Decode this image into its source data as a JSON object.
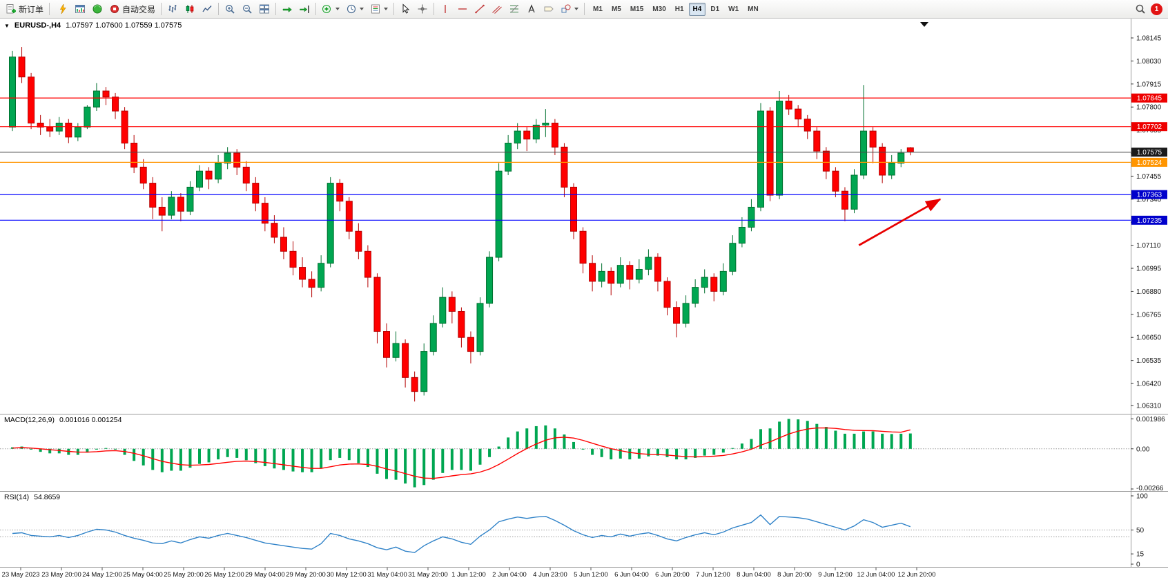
{
  "toolbar": {
    "new_order_label": "新订单",
    "autotrading_label": "自动交易",
    "timeframes": [
      "M1",
      "M5",
      "M15",
      "M30",
      "H1",
      "H4",
      "D1",
      "W1",
      "MN"
    ],
    "active_timeframe": "H4",
    "notification_count": "1"
  },
  "chart_data": {
    "type": "candlestick",
    "title": "EURUSD-,H4",
    "menu_icon": "▼",
    "quote_line": "1.07597 1.07600 1.07559 1.07575",
    "price_axis": {
      "max": 1.08145,
      "min": 1.0631,
      "tick_labels": [
        "1.08145",
        "1.08030",
        "1.07915",
        "1.07800",
        "1.07685",
        "1.07570",
        "1.07455",
        "1.07340",
        "1.07225",
        "1.07110",
        "1.06995",
        "1.06880",
        "1.06765",
        "1.06650",
        "1.06535",
        "1.06420",
        "1.06310"
      ]
    },
    "time_labels": [
      "23 May 2023",
      "23 May 20:00",
      "24 May 12:00",
      "25 May 04:00",
      "25 May 20:00",
      "26 May 12:00",
      "29 May 04:00",
      "29 May 20:00",
      "30 May 12:00",
      "31 May 04:00",
      "31 May 20:00",
      "1 Jun 12:00",
      "2 Jun 04:00",
      "4 Jun 23:00",
      "5 Jun 12:00",
      "6 Jun 04:00",
      "6 Jun 20:00",
      "7 Jun 12:00",
      "8 Jun 04:00",
      "8 Jun 20:00",
      "9 Jun 12:00",
      "12 Jun 04:00",
      "12 Jun 20:00"
    ],
    "colors": {
      "up": "#00a651",
      "up_border": "#00702f",
      "down": "#ff0000",
      "down_border": "#b40000",
      "macd_hist": "#00a651",
      "macd_signal": "#ff0000",
      "rsi_line": "#2f82c8",
      "grid": "#9a9a9a"
    },
    "hlines": [
      {
        "price": 1.07845,
        "color": "#ff0000",
        "box": "1.07845",
        "box_color": "#ee0000"
      },
      {
        "price": 1.07702,
        "color": "#ff0000",
        "box": "1.07702",
        "box_color": "#ee0000"
      },
      {
        "price": 1.07575,
        "color": "#4a4a4a",
        "box": "1.07575",
        "box_color": "#1a1a1a"
      },
      {
        "price": 1.07524,
        "color": "#ff9500",
        "box": "1.07524",
        "box_color": "#ff9500"
      },
      {
        "price": 1.07363,
        "color": "#0000ff",
        "box": "1.07363",
        "box_color": "#0000cc"
      },
      {
        "price": 1.07235,
        "color": "#0000ff",
        "box": "1.07235",
        "box_color": "#0000cc"
      }
    ],
    "arrow": {
      "from_bar": 90.5,
      "from_price": 1.0711,
      "to_bar": 99.2,
      "to_price": 1.0734,
      "color": "#e80000"
    },
    "candles": [
      [
        1.077,
        1.0808,
        1.0768,
        1.0805
      ],
      [
        1.0805,
        1.081,
        1.0792,
        1.0795
      ],
      [
        1.0795,
        1.0797,
        1.0769,
        1.0772
      ],
      [
        1.0772,
        1.0776,
        1.0766,
        1.077
      ],
      [
        1.077,
        1.0774,
        1.0765,
        1.0768
      ],
      [
        1.0768,
        1.0775,
        1.0766,
        1.0772
      ],
      [
        1.0772,
        1.0774,
        1.0762,
        1.0765
      ],
      [
        1.0765,
        1.0772,
        1.0763,
        1.077
      ],
      [
        1.077,
        1.0781,
        1.0769,
        1.078
      ],
      [
        1.078,
        1.0792,
        1.0778,
        1.0788
      ],
      [
        1.0788,
        1.079,
        1.0781,
        1.0785
      ],
      [
        1.0785,
        1.0787,
        1.0774,
        1.0778
      ],
      [
        1.0778,
        1.078,
        1.0759,
        1.0762
      ],
      [
        1.0762,
        1.0766,
        1.0747,
        1.075
      ],
      [
        1.075,
        1.0754,
        1.0739,
        1.0742
      ],
      [
        1.0742,
        1.0745,
        1.0724,
        1.073
      ],
      [
        1.073,
        1.0735,
        1.0718,
        1.0726
      ],
      [
        1.0726,
        1.0738,
        1.0724,
        1.0735
      ],
      [
        1.0735,
        1.0737,
        1.0723,
        1.0728
      ],
      [
        1.0728,
        1.0743,
        1.0726,
        1.074
      ],
      [
        1.074,
        1.0751,
        1.0738,
        1.0748
      ],
      [
        1.0748,
        1.075,
        1.0739,
        1.0744
      ],
      [
        1.0744,
        1.0756,
        1.0742,
        1.0752
      ],
      [
        1.0752,
        1.076,
        1.0749,
        1.0757
      ],
      [
        1.0757,
        1.0759,
        1.0746,
        1.075
      ],
      [
        1.075,
        1.0753,
        1.0738,
        1.0742
      ],
      [
        1.0742,
        1.0745,
        1.0728,
        1.0732
      ],
      [
        1.0732,
        1.0735,
        1.0718,
        1.0722
      ],
      [
        1.0722,
        1.0726,
        1.0712,
        1.0715
      ],
      [
        1.0715,
        1.072,
        1.0704,
        1.0708
      ],
      [
        1.0708,
        1.0713,
        1.0696,
        1.07
      ],
      [
        1.07,
        1.0705,
        1.069,
        1.0694
      ],
      [
        1.0694,
        1.0698,
        1.0685,
        1.069
      ],
      [
        1.069,
        1.0706,
        1.0688,
        1.0702
      ],
      [
        1.0702,
        1.0745,
        1.07,
        1.0742
      ],
      [
        1.0742,
        1.0744,
        1.0728,
        1.0733
      ],
      [
        1.0733,
        1.0735,
        1.0714,
        1.0718
      ],
      [
        1.0718,
        1.0722,
        1.0704,
        1.0708
      ],
      [
        1.0708,
        1.0711,
        1.069,
        1.0695
      ],
      [
        1.0695,
        1.0697,
        1.0662,
        1.0668
      ],
      [
        1.0668,
        1.0672,
        1.065,
        1.0655
      ],
      [
        1.0655,
        1.0668,
        1.0653,
        1.0662
      ],
      [
        1.0662,
        1.0664,
        1.064,
        1.0645
      ],
      [
        1.0645,
        1.0648,
        1.0633,
        1.0638
      ],
      [
        1.0638,
        1.0662,
        1.0636,
        1.0658
      ],
      [
        1.0658,
        1.0676,
        1.0656,
        1.0672
      ],
      [
        1.0672,
        1.069,
        1.067,
        1.0685
      ],
      [
        1.0685,
        1.0688,
        1.0672,
        1.0678
      ],
      [
        1.0678,
        1.068,
        1.066,
        1.0665
      ],
      [
        1.0665,
        1.0668,
        1.0652,
        1.0658
      ],
      [
        1.0658,
        1.0685,
        1.0656,
        1.0682
      ],
      [
        1.0682,
        1.0708,
        1.068,
        1.0705
      ],
      [
        1.0705,
        1.0752,
        1.0703,
        1.0748
      ],
      [
        1.0748,
        1.0766,
        1.0746,
        1.0762
      ],
      [
        1.0762,
        1.0772,
        1.0759,
        1.0768
      ],
      [
        1.0768,
        1.077,
        1.0758,
        1.0764
      ],
      [
        1.0764,
        1.0774,
        1.0762,
        1.0771
      ],
      [
        1.0771,
        1.0779,
        1.0765,
        1.0772
      ],
      [
        1.0772,
        1.0774,
        1.0756,
        1.076
      ],
      [
        1.076,
        1.0762,
        1.0735,
        1.074
      ],
      [
        1.074,
        1.0742,
        1.0714,
        1.0718
      ],
      [
        1.0718,
        1.072,
        1.0697,
        1.0702
      ],
      [
        1.0702,
        1.0706,
        1.0688,
        1.0693
      ],
      [
        1.0693,
        1.0702,
        1.069,
        1.0698
      ],
      [
        1.0698,
        1.07,
        1.0686,
        1.0692
      ],
      [
        1.0692,
        1.0705,
        1.069,
        1.0701
      ],
      [
        1.0701,
        1.0703,
        1.0689,
        1.0694
      ],
      [
        1.0694,
        1.0704,
        1.0692,
        1.0699
      ],
      [
        1.0699,
        1.0709,
        1.0696,
        1.0705
      ],
      [
        1.0705,
        1.0707,
        1.0688,
        1.0693
      ],
      [
        1.0693,
        1.0695,
        1.0676,
        1.068
      ],
      [
        1.068,
        1.0683,
        1.0665,
        1.0672
      ],
      [
        1.0672,
        1.0686,
        1.067,
        1.0682
      ],
      [
        1.0682,
        1.0694,
        1.068,
        1.069
      ],
      [
        1.069,
        1.0699,
        1.0687,
        1.0695
      ],
      [
        1.0695,
        1.0697,
        1.0683,
        1.0688
      ],
      [
        1.0688,
        1.0702,
        1.0686,
        1.0698
      ],
      [
        1.0698,
        1.0716,
        1.0696,
        1.0712
      ],
      [
        1.0712,
        1.0725,
        1.071,
        1.072
      ],
      [
        1.072,
        1.0734,
        1.0718,
        1.073
      ],
      [
        1.073,
        1.0782,
        1.0728,
        1.0778
      ],
      [
        1.0778,
        1.078,
        1.0733,
        1.0736
      ],
      [
        1.0736,
        1.0788,
        1.0734,
        1.0783
      ],
      [
        1.0783,
        1.0786,
        1.0776,
        1.0779
      ],
      [
        1.0779,
        1.0781,
        1.077,
        1.0774
      ],
      [
        1.0774,
        1.0776,
        1.0764,
        1.0768
      ],
      [
        1.0768,
        1.077,
        1.0754,
        1.0758
      ],
      [
        1.0758,
        1.076,
        1.0744,
        1.0748
      ],
      [
        1.0748,
        1.075,
        1.0735,
        1.0738
      ],
      [
        1.0738,
        1.074,
        1.0723,
        1.0729
      ],
      [
        1.0729,
        1.0749,
        1.0727,
        1.0746
      ],
      [
        1.0746,
        1.0791,
        1.0744,
        1.0768
      ],
      [
        1.0768,
        1.077,
        1.0752,
        1.076
      ],
      [
        1.076,
        1.0762,
        1.0742,
        1.0746
      ],
      [
        1.0746,
        1.0756,
        1.0744,
        1.0752
      ],
      [
        1.0752,
        1.0759,
        1.075,
        1.0757
      ],
      [
        1.07597,
        1.076,
        1.07559,
        1.07575
      ]
    ],
    "macd": {
      "label": "MACD(12,26,9)",
      "values_text": "0.001016 0.001254",
      "scale_labels": [
        "0.001986",
        "0.00",
        "-0.00266"
      ],
      "max": 0.002,
      "min": -0.00266,
      "histogram": [
        0.0001,
        0.00015,
        -5e-05,
        -0.0002,
        -0.0003,
        -0.0003,
        -0.0004,
        -0.0004,
        -0.00025,
        -5e-05,
        5e-05,
        -5e-05,
        -0.0004,
        -0.0008,
        -0.0011,
        -0.0014,
        -0.00155,
        -0.00145,
        -0.00145,
        -0.00125,
        -0.001,
        -0.0009,
        -0.0007,
        -0.00055,
        -0.0006,
        -0.00075,
        -0.00095,
        -0.00115,
        -0.0013,
        -0.0014,
        -0.0015,
        -0.00155,
        -0.00155,
        -0.0013,
        -0.00075,
        -0.0006,
        -0.00075,
        -0.00095,
        -0.0012,
        -0.00165,
        -0.002,
        -0.00205,
        -0.0023,
        -0.00255,
        -0.0024,
        -0.00205,
        -0.0016,
        -0.0014,
        -0.0014,
        -0.00145,
        -0.00105,
        -0.00055,
        0.00015,
        0.00075,
        0.00115,
        0.00135,
        0.0015,
        0.00155,
        0.00135,
        0.00095,
        0.00045,
        -5e-05,
        -0.0004,
        -0.00055,
        -0.0007,
        -0.00065,
        -0.0007,
        -0.00065,
        -0.0005,
        -0.00045,
        -0.00055,
        -0.0007,
        -0.0007,
        -0.0006,
        -0.00045,
        -0.0004,
        -0.00025,
        5e-05,
        0.00035,
        0.00065,
        0.0013,
        0.00135,
        0.0018,
        0.00198,
        0.00195,
        0.00185,
        0.00165,
        0.00145,
        0.0012,
        0.001,
        0.001,
        0.00115,
        0.00115,
        0.001,
        0.00098,
        0.001,
        0.001016
      ],
      "signal": [
        5e-05,
        8e-05,
        5e-05,
        0.0,
        -6e-05,
        -0.00011,
        -0.00017,
        -0.00022,
        -0.00022,
        -0.00019,
        -0.00014,
        -0.00012,
        -0.00018,
        -0.0003,
        -0.00046,
        -0.00065,
        -0.00083,
        -0.00095,
        -0.00105,
        -0.00109,
        -0.00107,
        -0.00104,
        -0.00097,
        -0.00089,
        -0.00083,
        -0.00081,
        -0.00084,
        -0.0009,
        -0.00098,
        -0.00106,
        -0.00115,
        -0.00123,
        -0.0013,
        -0.0013,
        -0.00119,
        -0.00107,
        -0.00101,
        -0.001,
        -0.00104,
        -0.00116,
        -0.00133,
        -0.00147,
        -0.00164,
        -0.00182,
        -0.00194,
        -0.00196,
        -0.00189,
        -0.00179,
        -0.00171,
        -0.00166,
        -0.00154,
        -0.00134,
        -0.00104,
        -0.00068,
        -0.00031,
        2e-05,
        0.00032,
        0.00057,
        0.00073,
        0.00077,
        0.00071,
        0.00056,
        0.00037,
        0.00018,
        1e-05,
        -0.00012,
        -0.00024,
        -0.00032,
        -0.00036,
        -0.00038,
        -0.00041,
        -0.00047,
        -0.00052,
        -0.00053,
        -0.00052,
        -0.00049,
        -0.00044,
        -0.00034,
        -0.0002,
        -3e-05,
        0.00024,
        0.00046,
        0.00073,
        0.00098,
        0.00117,
        0.00131,
        0.00138,
        0.00139,
        0.00135,
        0.00128,
        0.00123,
        0.00121,
        0.0012,
        0.00116,
        0.00112,
        0.0011,
        0.001254
      ]
    },
    "rsi": {
      "label": "RSI(14)",
      "value_text": "54.8659",
      "scale_labels": [
        "100",
        "50",
        "15",
        "0"
      ],
      "levels": [
        50,
        40
      ],
      "values": [
        45,
        46,
        42,
        41,
        40,
        42,
        39,
        42,
        47,
        51,
        50,
        47,
        42,
        38,
        35,
        31,
        30,
        34,
        31,
        36,
        40,
        38,
        42,
        45,
        42,
        39,
        35,
        31,
        29,
        27,
        25,
        23,
        22,
        30,
        45,
        42,
        37,
        34,
        30,
        24,
        21,
        25,
        19,
        17,
        27,
        34,
        40,
        37,
        32,
        29,
        41,
        50,
        62,
        66,
        69,
        67,
        69,
        70,
        64,
        57,
        49,
        43,
        39,
        42,
        40,
        44,
        41,
        44,
        46,
        42,
        37,
        34,
        39,
        43,
        46,
        43,
        47,
        53,
        57,
        61,
        72,
        58,
        70,
        69,
        68,
        66,
        62,
        58,
        54,
        50,
        56,
        65,
        61,
        54,
        57,
        60,
        54.8659
      ]
    }
  }
}
